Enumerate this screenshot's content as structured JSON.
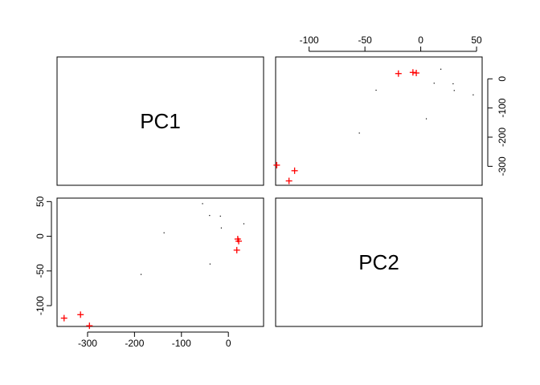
{
  "chart_data": {
    "type": "scatter",
    "variables": [
      "PC1",
      "PC2"
    ],
    "colors": {
      "black_points": "#000000",
      "red_points": "#ff0000"
    },
    "marker": {
      "black_points": "dot",
      "red_points": "plus"
    },
    "axes": {
      "PC1": {
        "range": [
          -365,
          75
        ],
        "ticks": [
          -300,
          -200,
          -100,
          0
        ],
        "tick_labels": [
          "-300",
          "-200",
          "-100",
          "0"
        ]
      },
      "PC2": {
        "range": [
          -130,
          55
        ],
        "ticks": [
          -100,
          -50,
          0,
          50
        ],
        "tick_labels": [
          "-100",
          "-50",
          "0",
          "50"
        ]
      }
    },
    "panels": [
      {
        "position": "top-left",
        "diagonal_label": "PC1"
      },
      {
        "position": "top-right",
        "x_variable": "PC2",
        "y_variable": "PC1",
        "x_axis_side": "top",
        "y_axis_side": "right"
      },
      {
        "position": "bottom-left",
        "x_variable": "PC1",
        "y_variable": "PC2",
        "x_axis_side": "bottom",
        "y_axis_side": "left"
      },
      {
        "position": "bottom-right",
        "diagonal_label": "PC2"
      }
    ],
    "grid": false,
    "legend": "none",
    "series": [
      {
        "group": "black_points",
        "points": [
          {
            "PC1": -55,
            "PC2": 47
          },
          {
            "PC1": -40,
            "PC2": 30
          },
          {
            "PC1": -17,
            "PC2": 29
          },
          {
            "PC1": -15,
            "PC2": 12
          },
          {
            "PC1": 33,
            "PC2": 18
          },
          {
            "PC1": -137,
            "PC2": 5
          },
          {
            "PC1": -39,
            "PC2": -40
          },
          {
            "PC1": -186,
            "PC2": -55
          }
        ]
      },
      {
        "group": "red_points",
        "points": [
          {
            "PC1": 20,
            "PC2": -4
          },
          {
            "PC1": 22,
            "PC2": -7
          },
          {
            "PC1": 18,
            "PC2": -20
          },
          {
            "PC1": -350,
            "PC2": -118
          },
          {
            "PC1": -315,
            "PC2": -113
          },
          {
            "PC1": -296,
            "PC2": -129
          }
        ]
      }
    ]
  }
}
